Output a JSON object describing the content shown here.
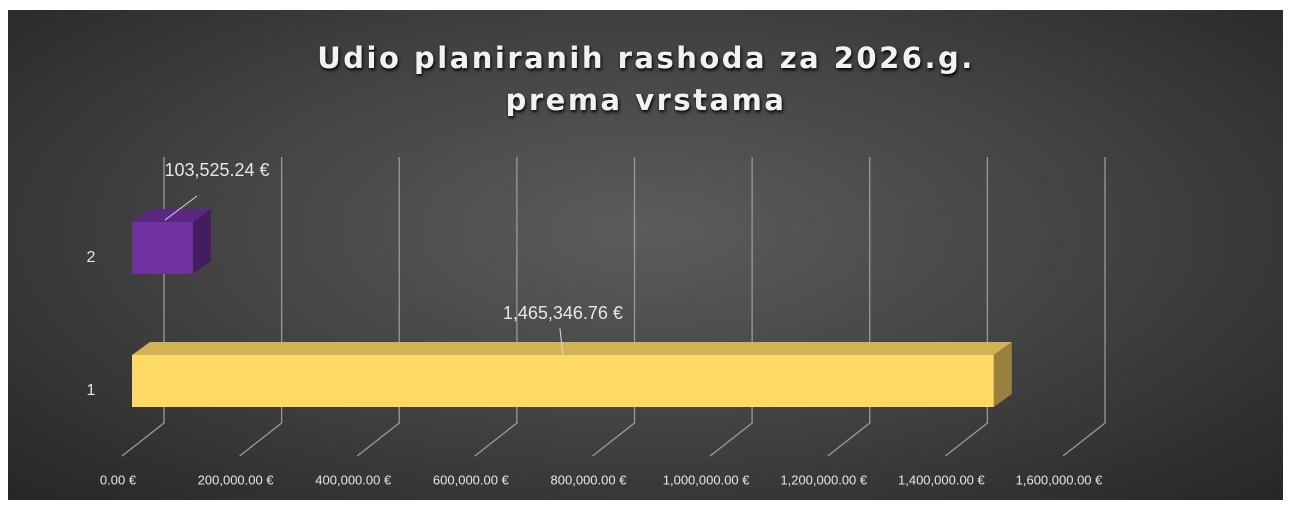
{
  "chart_data": {
    "type": "bar3d_horizontal",
    "title": "Udio planiranih rashoda za 2026.g. prema vrstama",
    "categories": [
      "1",
      "2"
    ],
    "values": [
      1465346.76,
      103525.24
    ],
    "value_labels": [
      "1,465,346.76 €",
      "103,525.24 €"
    ],
    "colors": [
      "#ffd966",
      "#7030a0"
    ],
    "xlim": [
      0,
      1600000
    ],
    "xticks": [
      {
        "value": 0,
        "label": "0.00 €"
      },
      {
        "value": 200000,
        "label": "200,000.00 €"
      },
      {
        "value": 400000,
        "label": "400,000.00 €"
      },
      {
        "value": 600000,
        "label": "600,000.00 €"
      },
      {
        "value": 800000,
        "label": "800,000.00 €"
      },
      {
        "value": 1000000,
        "label": "1,000,000.00 €"
      },
      {
        "value": 1200000,
        "label": "1,200,000.00 €"
      },
      {
        "value": 1400000,
        "label": "1,400,000.00 €"
      },
      {
        "value": 1600000,
        "label": "1,600,000.00 €"
      }
    ],
    "grid": true
  }
}
